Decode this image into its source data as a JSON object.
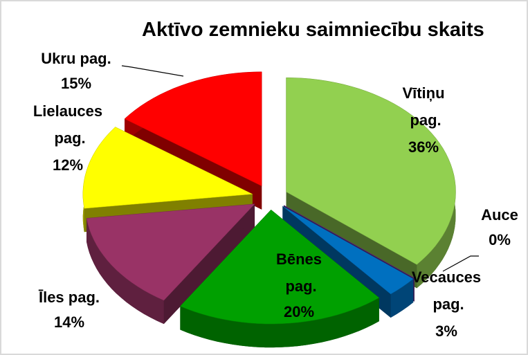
{
  "chart_data": {
    "type": "pie",
    "title": "Aktīvo zemnieku saimniecību skaits",
    "categories": [
      "Vītiņu pag.",
      "Auce",
      "Vecauces pag.",
      "Bēnes pag.",
      "Īles pag.",
      "Lielauces pag.",
      "Ukru pag."
    ],
    "values": [
      36,
      0,
      3,
      20,
      14,
      12,
      15
    ],
    "value_labels": [
      "36%",
      "0%",
      "3%",
      "20%",
      "14%",
      "12%",
      "15%"
    ],
    "colors": [
      "#92d050",
      "#7030a0",
      "#0070c0",
      "#00a000",
      "#993366",
      "#ffff00",
      "#ff0000"
    ]
  }
}
